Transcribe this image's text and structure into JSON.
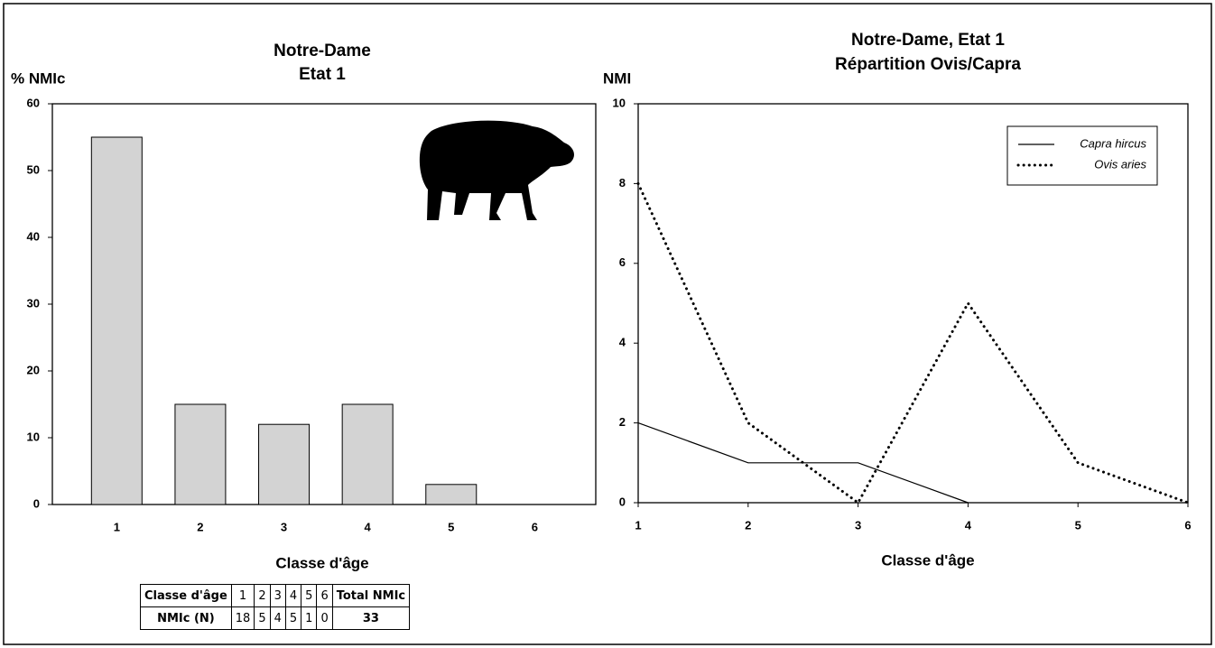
{
  "chart_data": [
    {
      "type": "bar",
      "title": "Notre-Dame",
      "subtitle": "Etat 1",
      "y_label": "% NMIc",
      "x_label": "Classe d'âge",
      "categories": [
        "1",
        "2",
        "3",
        "4",
        "5",
        "6"
      ],
      "values": [
        55,
        15,
        12,
        15,
        3,
        0
      ],
      "color": "#d3d3d3",
      "ylim": [
        0,
        60
      ],
      "yticks": [
        0,
        10,
        20,
        30,
        40,
        50,
        60
      ]
    },
    {
      "type": "line",
      "title": "Notre-Dame, Etat 1",
      "subtitle": "Répartition Ovis/Capra",
      "y_label": "NMI",
      "x_label": "Classe d'âge",
      "x": [
        1,
        2,
        3,
        4,
        5,
        6
      ],
      "series": [
        {
          "name": "Capra hircus",
          "color": "#000000",
          "style": "solid",
          "values": [
            2,
            1,
            1,
            0,
            null,
            null
          ]
        },
        {
          "name": "Ovis aries",
          "color": "#000000",
          "style": "dotted",
          "values": [
            8,
            2,
            0,
            5,
            1,
            0
          ]
        }
      ],
      "xlim": [
        1,
        6
      ],
      "xticks": [
        1,
        2,
        3,
        4,
        5,
        6
      ],
      "ylim": [
        0,
        10
      ],
      "yticks": [
        0,
        2,
        4,
        6,
        8,
        10
      ],
      "legend": "top-right"
    }
  ],
  "table": {
    "header": [
      "Classe d'âge",
      "1",
      "2",
      "3",
      "4",
      "5",
      "6",
      "Total NMIc"
    ],
    "rows": [
      [
        "NMIc (N)",
        18,
        5,
        4,
        5,
        1,
        0,
        33
      ]
    ]
  }
}
